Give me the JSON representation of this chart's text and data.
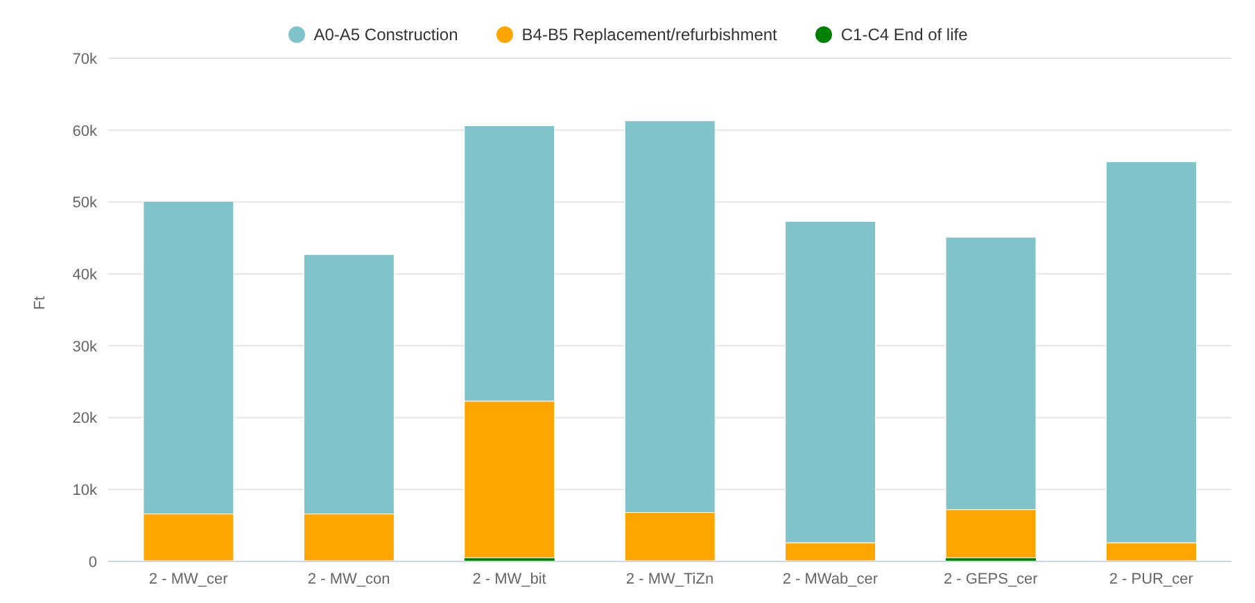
{
  "chart_data": {
    "type": "bar",
    "stacked": true,
    "ylabel": "Ft",
    "categories": [
      "2 - MW_cer",
      "2 - MW_con",
      "2 - MW_bit",
      "2 - MW_TiZn",
      "2 - MWab_cer",
      "2 - GEPS_cer",
      "2 - PUR_cer"
    ],
    "series": [
      {
        "name": "C1-C4 End of life",
        "color": "#008000",
        "values": [
          100,
          100,
          500,
          100,
          100,
          500,
          100
        ]
      },
      {
        "name": "B4-B5 Replacement/refurbishment",
        "color": "#ffa500",
        "values": [
          6500,
          6500,
          21800,
          6700,
          2500,
          6700,
          2500
        ]
      },
      {
        "name": "A0-A5 Construction",
        "color": "#80c3cb",
        "values": [
          43500,
          36100,
          38300,
          54500,
          44700,
          37900,
          53000
        ]
      }
    ],
    "ylim": [
      0,
      70000
    ],
    "yticks": [
      {
        "value": 0,
        "label": "0"
      },
      {
        "value": 10000,
        "label": "10k"
      },
      {
        "value": 20000,
        "label": "20k"
      },
      {
        "value": 30000,
        "label": "30k"
      },
      {
        "value": 40000,
        "label": "40k"
      },
      {
        "value": 50000,
        "label": "50k"
      },
      {
        "value": 60000,
        "label": "60k"
      },
      {
        "value": 70000,
        "label": "70k"
      }
    ],
    "grid": "y",
    "legend": "top"
  }
}
